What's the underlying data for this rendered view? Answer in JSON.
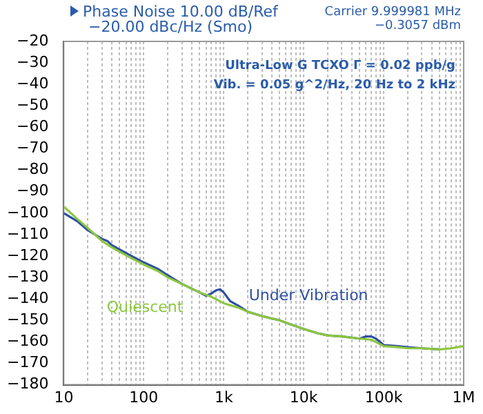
{
  "chart_data": {
    "type": "line",
    "title": "Phase Noise 10.00 dB/Ref\n−20.00 dBc/Hz (Smo)",
    "subtitle": "Carrier 9.999981 MHz\n−0.3057 dBm",
    "annotations": [
      "Ultra-Low G TCXO Γ = 0.02 ppb/g",
      "Vib. = 0.05 g^2/Hz, 20 Hz to 2 kHz"
    ],
    "log": "x",
    "grid": "x",
    "marker": "none",
    "line_style": "solid",
    "xlim": [
      10,
      1000000
    ],
    "xticks": [
      {
        "value": 10,
        "label": "10"
      },
      {
        "value": 20,
        "label": null
      },
      {
        "value": 30,
        "label": null
      },
      {
        "value": 40,
        "label": null
      },
      {
        "value": 50,
        "label": null
      },
      {
        "value": 60,
        "label": null
      },
      {
        "value": 70,
        "label": null
      },
      {
        "value": 80,
        "label": null
      },
      {
        "value": 90,
        "label": null
      },
      {
        "value": 100,
        "label": "100"
      },
      {
        "value": 200,
        "label": null
      },
      {
        "value": 300,
        "label": null
      },
      {
        "value": 400,
        "label": null
      },
      {
        "value": 500,
        "label": null
      },
      {
        "value": 600,
        "label": null
      },
      {
        "value": 700,
        "label": null
      },
      {
        "value": 800,
        "label": null
      },
      {
        "value": 900,
        "label": null
      },
      {
        "value": 1000,
        "label": "1k"
      },
      {
        "value": 2000,
        "label": null
      },
      {
        "value": 3000,
        "label": null
      },
      {
        "value": 4000,
        "label": null
      },
      {
        "value": 5000,
        "label": null
      },
      {
        "value": 6000,
        "label": null
      },
      {
        "value": 7000,
        "label": null
      },
      {
        "value": 8000,
        "label": null
      },
      {
        "value": 9000,
        "label": null
      },
      {
        "value": 10000,
        "label": "10k"
      },
      {
        "value": 20000,
        "label": null
      },
      {
        "value": 30000,
        "label": null
      },
      {
        "value": 40000,
        "label": null
      },
      {
        "value": 50000,
        "label": null
      },
      {
        "value": 60000,
        "label": null
      },
      {
        "value": 70000,
        "label": null
      },
      {
        "value": 80000,
        "label": null
      },
      {
        "value": 90000,
        "label": null
      },
      {
        "value": 100000,
        "label": "100k"
      },
      {
        "value": 200000,
        "label": null
      },
      {
        "value": 300000,
        "label": null
      },
      {
        "value": 400000,
        "label": null
      },
      {
        "value": 500000,
        "label": null
      },
      {
        "value": 600000,
        "label": null
      },
      {
        "value": 700000,
        "label": null
      },
      {
        "value": 800000,
        "label": null
      },
      {
        "value": 900000,
        "label": null
      },
      {
        "value": 1000000,
        "label": "1M"
      }
    ],
    "ylim": [
      -180,
      -20
    ],
    "yticks": [
      -180,
      -170,
      -160,
      -150,
      -140,
      -130,
      -120,
      -110,
      -100,
      -90,
      -80,
      -70,
      -60,
      -50,
      -40,
      -30,
      -20
    ],
    "series": [
      {
        "name": "Quiescent",
        "color": "#8cc63f",
        "x": [
          10,
          15,
          20,
          30,
          40,
          50,
          70,
          100,
          150,
          200,
          300,
          500,
          700,
          1000,
          1500,
          2000,
          3000,
          5000,
          7000,
          10000,
          15000,
          20000,
          30000,
          50000,
          70000,
          100000,
          150000,
          200000,
          300000,
          500000,
          700000,
          1000000
        ],
        "values": [
          -97,
          -103,
          -107,
          -113,
          -116,
          -118,
          -121,
          -124,
          -127,
          -130,
          -133,
          -137,
          -139,
          -142,
          -144,
          -146,
          -148,
          -150,
          -152,
          -154,
          -156,
          -157,
          -157.5,
          -158.5,
          -159,
          -162,
          -162.5,
          -163,
          -163,
          -163.5,
          -163,
          -162
        ]
      },
      {
        "name": "Under Vibration",
        "color": "#2e4fa3",
        "x": [
          10,
          15,
          20,
          30,
          35,
          40,
          50,
          70,
          100,
          150,
          200,
          300,
          500,
          600,
          700,
          800,
          900,
          1000,
          1200,
          1500,
          2000,
          3000,
          5000,
          7000,
          10000,
          15000,
          20000,
          30000,
          50000,
          60000,
          70000,
          80000,
          100000,
          150000,
          200000,
          300000,
          500000
        ],
        "values": [
          -100,
          -104,
          -108,
          -112,
          -113,
          -115,
          -117,
          -120,
          -123,
          -126,
          -129,
          -133,
          -137,
          -138.5,
          -137.5,
          -136,
          -135.5,
          -137,
          -141,
          -143,
          -146,
          -148,
          -150,
          -152,
          -154,
          -156,
          -157,
          -157.5,
          -158.5,
          -157.5,
          -157.5,
          -158.5,
          -161.5,
          -162,
          -162.5,
          -163,
          -163.5
        ]
      }
    ]
  }
}
